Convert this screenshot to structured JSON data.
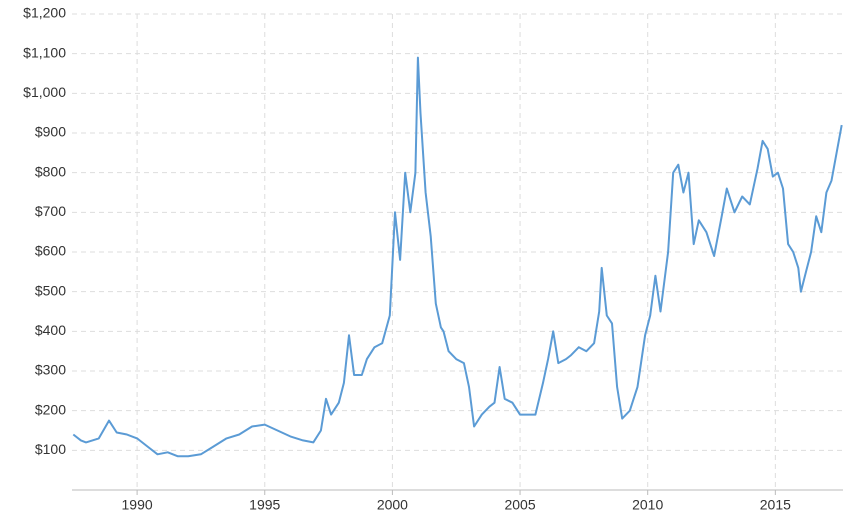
{
  "chart_data": {
    "type": "line",
    "x": [
      1987.5,
      1987.8,
      1988.0,
      1988.5,
      1988.9,
      1989.2,
      1989.6,
      1990.0,
      1990.4,
      1990.8,
      1991.2,
      1991.6,
      1992.0,
      1992.5,
      1993.0,
      1993.5,
      1994.0,
      1994.5,
      1995.0,
      1995.5,
      1996.0,
      1996.5,
      1996.9,
      1997.2,
      1997.4,
      1997.6,
      1997.9,
      1998.1,
      1998.3,
      1998.5,
      1998.8,
      1999.0,
      1999.3,
      1999.6,
      1999.9,
      2000.1,
      2000.3,
      2000.5,
      2000.7,
      2000.9,
      2001.0,
      2001.1,
      2001.3,
      2001.5,
      2001.7,
      2001.9,
      2002.0,
      2002.2,
      2002.5,
      2002.8,
      2003.0,
      2003.2,
      2003.5,
      2003.8,
      2004.0,
      2004.2,
      2004.4,
      2004.7,
      2005.0,
      2005.3,
      2005.6,
      2005.9,
      2006.1,
      2006.3,
      2006.5,
      2006.8,
      2007.0,
      2007.3,
      2007.6,
      2007.9,
      2008.1,
      2008.2,
      2008.4,
      2008.6,
      2008.8,
      2009.0,
      2009.3,
      2009.6,
      2009.9,
      2010.1,
      2010.3,
      2010.5,
      2010.8,
      2011.0,
      2011.2,
      2011.4,
      2011.6,
      2011.8,
      2012.0,
      2012.3,
      2012.6,
      2012.9,
      2013.1,
      2013.4,
      2013.7,
      2014.0,
      2014.3,
      2014.5,
      2014.7,
      2014.9,
      2015.1,
      2015.3,
      2015.5,
      2015.7,
      2015.9,
      2016.0,
      2016.2,
      2016.4,
      2016.6,
      2016.8,
      2017.0,
      2017.2,
      2017.4,
      2017.6
    ],
    "series": [
      {
        "color": "#5b9bd5",
        "values": [
          140,
          125,
          120,
          130,
          175,
          145,
          140,
          130,
          110,
          90,
          95,
          85,
          85,
          90,
          110,
          130,
          140,
          160,
          165,
          150,
          135,
          125,
          120,
          150,
          230,
          190,
          220,
          270,
          390,
          290,
          290,
          330,
          360,
          370,
          440,
          700,
          580,
          800,
          700,
          800,
          1090,
          950,
          750,
          640,
          470,
          410,
          400,
          350,
          330,
          320,
          260,
          160,
          190,
          210,
          220,
          310,
          230,
          220,
          190,
          190,
          190,
          270,
          330,
          400,
          320,
          330,
          340,
          360,
          350,
          370,
          450,
          560,
          440,
          420,
          260,
          180,
          200,
          260,
          390,
          440,
          540,
          450,
          600,
          800,
          820,
          750,
          800,
          620,
          680,
          650,
          590,
          690,
          760,
          700,
          740,
          720,
          810,
          880,
          860,
          790,
          800,
          760,
          620,
          600,
          560,
          500,
          550,
          600,
          690,
          650,
          750,
          780,
          850,
          920
        ]
      }
    ],
    "xlim": [
      1987.45,
      2017.65
    ],
    "xticks": [
      1990,
      1995,
      2000,
      2005,
      2010,
      2015
    ],
    "ylim": [
      0,
      1200
    ],
    "yticks": [
      {
        "value": 100,
        "label": "$100"
      },
      {
        "value": 200,
        "label": "$200"
      },
      {
        "value": 300,
        "label": "$300"
      },
      {
        "value": 400,
        "label": "$400"
      },
      {
        "value": 500,
        "label": "$500"
      },
      {
        "value": 600,
        "label": "$600"
      },
      {
        "value": 700,
        "label": "$700"
      },
      {
        "value": 800,
        "label": "$800"
      },
      {
        "value": 900,
        "label": "$900"
      },
      {
        "value": 1000,
        "label": "$1,000"
      },
      {
        "value": 1100,
        "label": "$1,100"
      },
      {
        "value": 1200,
        "label": "$1,200"
      }
    ],
    "grid": true
  }
}
